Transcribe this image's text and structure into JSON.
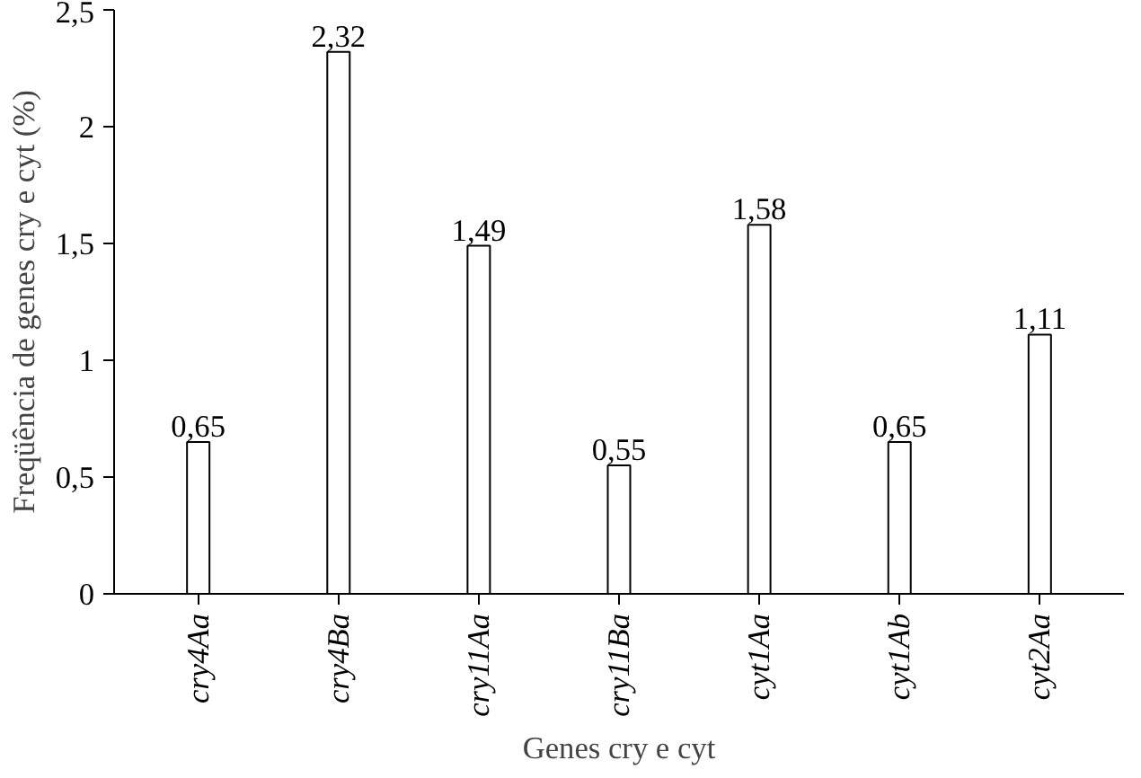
{
  "chart_data": {
    "type": "bar",
    "xlabel": "Genes cry e cyt",
    "ylabel": "Freqüência de genes cry e cyt (%)",
    "categories": [
      "cry4Aa",
      "cry4Ba",
      "cry11Aa",
      "cry11Ba",
      "cyt1Aa",
      "cyt1Ab",
      "cyt2Aa"
    ],
    "values": [
      0.65,
      2.32,
      1.49,
      0.55,
      1.58,
      0.65,
      1.11
    ],
    "value_labels": [
      "0,65",
      "2,32",
      "1,49",
      "0,55",
      "1,58",
      "0,65",
      "1,11"
    ],
    "color": "#ffffff",
    "ylim": [
      0,
      2.5
    ],
    "yticks": [
      0,
      {
        "value": 0.5,
        "label": "0,5"
      },
      1,
      {
        "value": 1.5,
        "label": "1,5"
      },
      2,
      {
        "value": 2.5,
        "label": "2,5"
      }
    ],
    "grid": false
  }
}
